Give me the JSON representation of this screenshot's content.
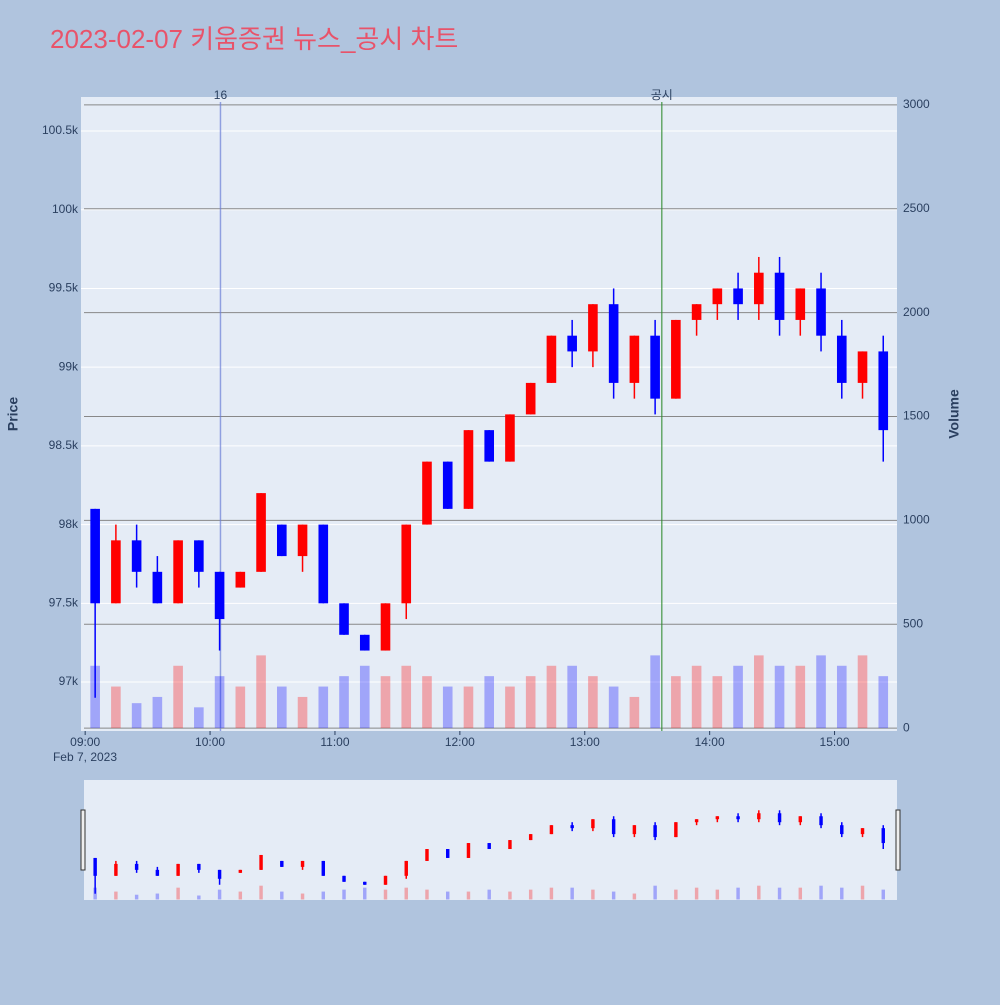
{
  "chart_data": {
    "type": "candlestick",
    "title": "2023-02-07 키움증권 뉴스_공시 차트",
    "ylabel": "Price",
    "y2label": "Volume",
    "x_date_label": "Feb 7, 2023",
    "x": [
      "2023-02-07 09:00",
      "2023-02-07 09:10",
      "2023-02-07 09:20",
      "2023-02-07 09:30",
      "2023-02-07 09:40",
      "2023-02-07 09:50",
      "2023-02-07 10:00",
      "2023-02-07 10:10",
      "2023-02-07 10:20",
      "2023-02-07 10:30",
      "2023-02-07 10:40",
      "2023-02-07 10:50",
      "2023-02-07 11:00",
      "2023-02-07 11:10",
      "2023-02-07 11:20",
      "2023-02-07 11:30",
      "2023-02-07 11:40",
      "2023-02-07 11:50",
      "2023-02-07 12:00",
      "2023-02-07 12:10",
      "2023-02-07 12:20",
      "2023-02-07 12:30",
      "2023-02-07 12:40",
      "2023-02-07 12:50",
      "2023-02-07 13:00",
      "2023-02-07 13:10",
      "2023-02-07 13:20",
      "2023-02-07 13:30",
      "2023-02-07 13:40",
      "2023-02-07 13:50",
      "2023-02-07 14:00",
      "2023-02-07 14:10",
      "2023-02-07 14:20",
      "2023-02-07 14:30",
      "2023-02-07 14:40",
      "2023-02-07 14:50",
      "2023-02-07 15:00",
      "2023-02-07 15:10",
      "2023-02-07 15:20"
    ],
    "open": [
      98100,
      97500,
      97900,
      97700,
      97500,
      97900,
      97700,
      97600,
      97700,
      98000,
      97800,
      98000,
      97500,
      97300,
      97200,
      97500,
      98000,
      98400,
      98100,
      98600,
      98400,
      98700,
      98900,
      99200,
      99100,
      99400,
      98900,
      99200,
      98800,
      99300,
      99400,
      99500,
      99400,
      99600,
      99300,
      99500,
      99200,
      98900,
      99100
    ],
    "high": [
      98100,
      98000,
      98000,
      97800,
      97900,
      97900,
      97700,
      97700,
      98200,
      98000,
      98000,
      98000,
      97500,
      97300,
      97500,
      98000,
      98400,
      98400,
      98600,
      98600,
      98700,
      98900,
      99200,
      99300,
      99400,
      99500,
      99200,
      99300,
      99300,
      99400,
      99500,
      99600,
      99700,
      99700,
      99500,
      99600,
      99300,
      99100,
      99200
    ],
    "low": [
      96900,
      97500,
      97600,
      97500,
      97500,
      97600,
      97200,
      97600,
      97700,
      97800,
      97700,
      97500,
      97300,
      97200,
      97200,
      97400,
      98000,
      98100,
      98100,
      98400,
      98400,
      98700,
      98900,
      99000,
      99000,
      98800,
      98800,
      98700,
      98800,
      99200,
      99300,
      99300,
      99300,
      99200,
      99200,
      99100,
      98800,
      98800,
      98400
    ],
    "close": [
      97500,
      97900,
      97700,
      97500,
      97900,
      97700,
      97400,
      97700,
      98200,
      97800,
      98000,
      97500,
      97300,
      97200,
      97500,
      98000,
      98400,
      98100,
      98600,
      98400,
      98700,
      98900,
      99200,
      99100,
      99400,
      98900,
      99200,
      98800,
      99300,
      99400,
      99500,
      99400,
      99600,
      99300,
      99500,
      99200,
      98900,
      99100,
      98600
    ],
    "increasing_color": "#ff0000",
    "decreasing_color": "#0000ff",
    "volume": {
      "axis": "y2",
      "values": [
        300,
        200,
        120,
        150,
        300,
        100,
        250,
        200,
        350,
        200,
        150,
        200,
        250,
        300,
        250,
        300,
        250,
        200,
        200,
        250,
        200,
        250,
        300,
        300,
        250,
        200,
        150,
        350,
        250,
        300,
        250,
        300,
        350,
        300,
        300,
        350,
        300,
        350,
        250
      ]
    },
    "xlim": [
      "2023-02-07 08:58",
      "2023-02-07 15:30"
    ],
    "xticks": [
      {
        "value": "2023-02-07 09:00",
        "label": "09:00"
      },
      {
        "value": "2023-02-07 10:00",
        "label": "10:00"
      },
      {
        "value": "2023-02-07 11:00",
        "label": "11:00"
      },
      {
        "value": "2023-02-07 12:00",
        "label": "12:00"
      },
      {
        "value": "2023-02-07 13:00",
        "label": "13:00"
      },
      {
        "value": "2023-02-07 14:00",
        "label": "14:00"
      },
      {
        "value": "2023-02-07 15:00",
        "label": "15:00"
      }
    ],
    "ylim": [
      96689,
      100716
    ],
    "yticks": [
      {
        "value": 97000,
        "label": "97k"
      },
      {
        "value": 97500,
        "label": "97.5k"
      },
      {
        "value": 98000,
        "label": "98k"
      },
      {
        "value": 98500,
        "label": "98.5k"
      },
      {
        "value": 99000,
        "label": "99k"
      },
      {
        "value": 99500,
        "label": "99.5k"
      },
      {
        "value": 100000,
        "label": "100k"
      },
      {
        "value": 100500,
        "label": "100.5k"
      }
    ],
    "y2lim": [
      -14,
      3038
    ],
    "y2ticks": [
      0,
      500,
      1000,
      1500,
      2000,
      2500,
      3000
    ],
    "annotations": [
      {
        "x": "2023-02-07 10:05",
        "text": "16",
        "color": "#6b7fd7"
      },
      {
        "x": "2023-02-07 13:37",
        "text": "공시",
        "color": "#2e8b2e"
      }
    ]
  }
}
